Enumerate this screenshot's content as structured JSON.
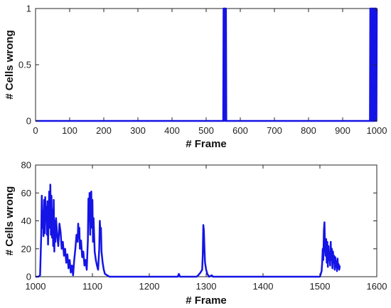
{
  "colors": {
    "series": "#1414e6",
    "axis": "#262626",
    "background": "#ffffff"
  },
  "chart_data": [
    {
      "type": "line",
      "xlabel": "# Frame",
      "ylabel": "# Cells wrong",
      "xlim": [
        0,
        1000
      ],
      "ylim": [
        0,
        1
      ],
      "xticks": [
        0,
        100,
        200,
        300,
        400,
        500,
        600,
        700,
        800,
        900,
        1000
      ],
      "yticks": [
        0,
        0.5,
        1
      ],
      "ytick_labels": [
        "0",
        "0.5",
        "1"
      ],
      "grid": false,
      "series": [
        {
          "values": [
            [
              0,
              0
            ],
            [
              550,
              0
            ],
            [
              551,
              1
            ],
            [
              552,
              0
            ],
            [
              553,
              1
            ],
            [
              554,
              1
            ],
            [
              555,
              0
            ],
            [
              556,
              1
            ],
            [
              557,
              0
            ],
            [
              558,
              1
            ],
            [
              559,
              0
            ],
            [
              700,
              0
            ],
            [
              980,
              0
            ],
            [
              981,
              1
            ],
            [
              982,
              0
            ],
            [
              983,
              1
            ],
            [
              984,
              0
            ],
            [
              985,
              1
            ],
            [
              986,
              0
            ],
            [
              987,
              1
            ],
            [
              988,
              0
            ],
            [
              989,
              1
            ],
            [
              990,
              0
            ],
            [
              991,
              1
            ],
            [
              992,
              0
            ],
            [
              993,
              1
            ],
            [
              994,
              0
            ],
            [
              995,
              1
            ],
            [
              996,
              1
            ],
            [
              997,
              0
            ],
            [
              998,
              1
            ],
            [
              999,
              0
            ],
            [
              1000,
              1
            ]
          ]
        }
      ]
    },
    {
      "type": "line",
      "xlabel": "# Frame",
      "ylabel": "# Cells wrong",
      "xlim": [
        1000,
        1600
      ],
      "ylim": [
        0,
        80
      ],
      "xticks": [
        1000,
        1100,
        1200,
        1300,
        1400,
        1500,
        1600
      ],
      "yticks": [
        0,
        20,
        40,
        60,
        80
      ],
      "grid": false,
      "series": [
        {
          "values": [
            [
              1000,
              0
            ],
            [
              1005,
              0
            ],
            [
              1008,
              1
            ],
            [
              1010,
              30
            ],
            [
              1011,
              58
            ],
            [
              1012,
              35
            ],
            [
              1013,
              47
            ],
            [
              1014,
              29
            ],
            [
              1015,
              55
            ],
            [
              1016,
              31
            ],
            [
              1017,
              57
            ],
            [
              1018,
              40
            ],
            [
              1019,
              50
            ],
            [
              1020,
              30
            ],
            [
              1021,
              54
            ],
            [
              1022,
              23
            ],
            [
              1023,
              45
            ],
            [
              1024,
              61
            ],
            [
              1025,
              35
            ],
            [
              1026,
              66
            ],
            [
              1027,
              30
            ],
            [
              1028,
              58
            ],
            [
              1029,
              28
            ],
            [
              1030,
              48
            ],
            [
              1031,
              22
            ],
            [
              1032,
              55
            ],
            [
              1033,
              18
            ],
            [
              1034,
              40
            ],
            [
              1035,
              25
            ],
            [
              1036,
              42
            ],
            [
              1038,
              30
            ],
            [
              1040,
              22
            ],
            [
              1042,
              38
            ],
            [
              1044,
              32
            ],
            [
              1046,
              20
            ],
            [
              1048,
              25
            ],
            [
              1050,
              15
            ],
            [
              1052,
              20
            ],
            [
              1054,
              10
            ],
            [
              1056,
              16
            ],
            [
              1058,
              6
            ],
            [
              1060,
              12
            ],
            [
              1062,
              3
            ],
            [
              1064,
              8
            ],
            [
              1066,
              1
            ],
            [
              1068,
              12
            ],
            [
              1070,
              20
            ],
            [
              1072,
              30
            ],
            [
              1074,
              25
            ],
            [
              1075,
              38
            ],
            [
              1076,
              28
            ],
            [
              1077,
              35
            ],
            [
              1078,
              20
            ],
            [
              1080,
              26
            ],
            [
              1082,
              14
            ],
            [
              1084,
              18
            ],
            [
              1086,
              8
            ],
            [
              1088,
              12
            ],
            [
              1090,
              5
            ],
            [
              1092,
              26
            ],
            [
              1093,
              56
            ],
            [
              1094,
              40
            ],
            [
              1095,
              60
            ],
            [
              1096,
              30
            ],
            [
              1097,
              58
            ],
            [
              1098,
              61
            ],
            [
              1099,
              35
            ],
            [
              1100,
              55
            ],
            [
              1101,
              25
            ],
            [
              1102,
              42
            ],
            [
              1104,
              18
            ],
            [
              1106,
              12
            ],
            [
              1108,
              8
            ],
            [
              1110,
              5
            ],
            [
              1112,
              20
            ],
            [
              1113,
              40
            ],
            [
              1114,
              32
            ],
            [
              1115,
              35
            ],
            [
              1116,
              18
            ],
            [
              1118,
              10
            ],
            [
              1120,
              5
            ],
            [
              1122,
              2
            ],
            [
              1126,
              1
            ],
            [
              1130,
              0
            ],
            [
              1200,
              0
            ],
            [
              1250,
              0
            ],
            [
              1252,
              2
            ],
            [
              1254,
              0
            ],
            [
              1283,
              0
            ],
            [
              1286,
              1
            ],
            [
              1290,
              3
            ],
            [
              1293,
              5
            ],
            [
              1294,
              15
            ],
            [
              1295,
              37
            ],
            [
              1296,
              33
            ],
            [
              1297,
              20
            ],
            [
              1298,
              10
            ],
            [
              1300,
              5
            ],
            [
              1302,
              2
            ],
            [
              1305,
              0
            ],
            [
              1310,
              1
            ],
            [
              1312,
              0
            ],
            [
              1400,
              0
            ],
            [
              1490,
              0
            ],
            [
              1500,
              0
            ],
            [
              1503,
              4
            ],
            [
              1504,
              10
            ],
            [
              1505,
              20
            ],
            [
              1506,
              12
            ],
            [
              1507,
              33
            ],
            [
              1508,
              39
            ],
            [
              1509,
              20
            ],
            [
              1510,
              15
            ],
            [
              1511,
              27
            ],
            [
              1512,
              10
            ],
            [
              1513,
              25
            ],
            [
              1514,
              7
            ],
            [
              1515,
              22
            ],
            [
              1516,
              12
            ],
            [
              1517,
              17
            ],
            [
              1518,
              8
            ],
            [
              1519,
              25
            ],
            [
              1520,
              12
            ],
            [
              1521,
              20
            ],
            [
              1522,
              6
            ],
            [
              1523,
              18
            ],
            [
              1524,
              10
            ],
            [
              1525,
              15
            ],
            [
              1526,
              5
            ],
            [
              1527,
              14
            ],
            [
              1528,
              7
            ],
            [
              1529,
              11
            ],
            [
              1530,
              4
            ],
            [
              1531,
              13
            ],
            [
              1532,
              6
            ],
            [
              1533,
              9
            ],
            [
              1534,
              5
            ],
            [
              1535,
              8
            ]
          ]
        }
      ]
    }
  ]
}
